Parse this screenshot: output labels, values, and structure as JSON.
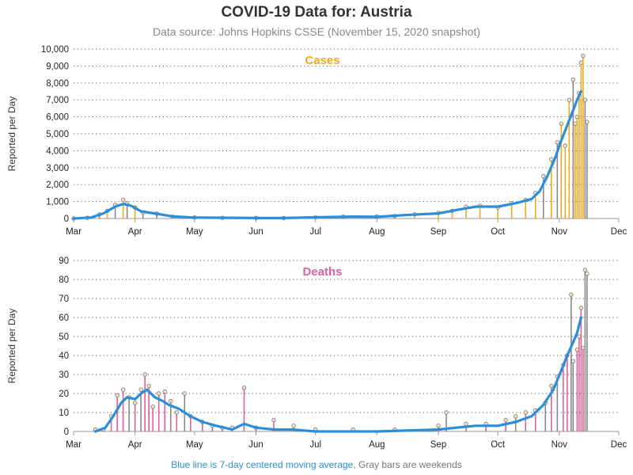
{
  "title": "COVID-19 Data for: Austria",
  "subtitle": "Data source: Johns Hopkins CSSE (November 15, 2020 snapshot)",
  "footer": {
    "blue_text": "Blue line is 7-day centered moving average,",
    "gray_text": "Gray bars are weekends"
  },
  "colors": {
    "cases": "#f0a91e",
    "deaths": "#e0609a",
    "average": "#2a8fd8",
    "weekend": "#888888"
  },
  "chart_data": [
    {
      "type": "bar",
      "panel_label": "Cases",
      "ylabel": "Reported per Day",
      "ylim": [
        0,
        10000
      ],
      "yticks": [
        "0",
        "1,000",
        "2,000",
        "3,000",
        "4,000",
        "5,000",
        "6,000",
        "7,000",
        "8,000",
        "9,000",
        "10,000"
      ],
      "xticks": [
        "Mar",
        "Apr",
        "May",
        "Jun",
        "Jul",
        "Aug",
        "Sep",
        "Oct",
        "Nov",
        "Dec"
      ],
      "grid": "horizontal dotted",
      "daily_series": [
        {
          "date": "2020-03-01",
          "value": 0
        },
        {
          "date": "2020-03-08",
          "value": 40
        },
        {
          "date": "2020-03-14",
          "value": 250
        },
        {
          "date": "2020-03-18",
          "value": 450
        },
        {
          "date": "2020-03-22",
          "value": 800
        },
        {
          "date": "2020-03-26",
          "value": 1100
        },
        {
          "date": "2020-03-28",
          "value": 900
        },
        {
          "date": "2020-04-01",
          "value": 650
        },
        {
          "date": "2020-04-05",
          "value": 350
        },
        {
          "date": "2020-04-12",
          "value": 280
        },
        {
          "date": "2020-04-20",
          "value": 100
        },
        {
          "date": "2020-05-01",
          "value": 60
        },
        {
          "date": "2020-05-15",
          "value": 40
        },
        {
          "date": "2020-06-01",
          "value": 30
        },
        {
          "date": "2020-06-15",
          "value": 25
        },
        {
          "date": "2020-07-01",
          "value": 60
        },
        {
          "date": "2020-07-15",
          "value": 110
        },
        {
          "date": "2020-08-01",
          "value": 120
        },
        {
          "date": "2020-08-10",
          "value": 150
        },
        {
          "date": "2020-08-20",
          "value": 250
        },
        {
          "date": "2020-09-01",
          "value": 330
        },
        {
          "date": "2020-09-08",
          "value": 450
        },
        {
          "date": "2020-09-15",
          "value": 700
        },
        {
          "date": "2020-09-22",
          "value": 750
        },
        {
          "date": "2020-10-01",
          "value": 650
        },
        {
          "date": "2020-10-08",
          "value": 900
        },
        {
          "date": "2020-10-15",
          "value": 1100
        },
        {
          "date": "2020-10-20",
          "value": 1500
        },
        {
          "date": "2020-10-24",
          "value": 2500
        },
        {
          "date": "2020-10-28",
          "value": 3500
        },
        {
          "date": "2020-10-31",
          "value": 4500
        },
        {
          "date": "2020-11-02",
          "value": 5600
        },
        {
          "date": "2020-11-04",
          "value": 4300
        },
        {
          "date": "2020-11-06",
          "value": 7000
        },
        {
          "date": "2020-11-08",
          "value": 8200
        },
        {
          "date": "2020-11-09",
          "value": 5600
        },
        {
          "date": "2020-11-10",
          "value": 6000
        },
        {
          "date": "2020-11-11",
          "value": 7400
        },
        {
          "date": "2020-11-12",
          "value": 9200
        },
        {
          "date": "2020-11-13",
          "value": 9600
        },
        {
          "date": "2020-11-14",
          "value": 7000
        },
        {
          "date": "2020-11-15",
          "value": 5700
        }
      ],
      "moving_average": [
        {
          "date": "2020-03-01",
          "value": 0
        },
        {
          "date": "2020-03-10",
          "value": 60
        },
        {
          "date": "2020-03-16",
          "value": 300
        },
        {
          "date": "2020-03-22",
          "value": 700
        },
        {
          "date": "2020-03-26",
          "value": 860
        },
        {
          "date": "2020-03-30",
          "value": 750
        },
        {
          "date": "2020-04-04",
          "value": 420
        },
        {
          "date": "2020-04-12",
          "value": 280
        },
        {
          "date": "2020-04-20",
          "value": 120
        },
        {
          "date": "2020-05-01",
          "value": 55
        },
        {
          "date": "2020-06-01",
          "value": 30
        },
        {
          "date": "2020-06-15",
          "value": 30
        },
        {
          "date": "2020-07-01",
          "value": 70
        },
        {
          "date": "2020-07-20",
          "value": 110
        },
        {
          "date": "2020-08-01",
          "value": 100
        },
        {
          "date": "2020-08-15",
          "value": 200
        },
        {
          "date": "2020-09-01",
          "value": 300
        },
        {
          "date": "2020-09-10",
          "value": 500
        },
        {
          "date": "2020-09-20",
          "value": 700
        },
        {
          "date": "2020-10-01",
          "value": 700
        },
        {
          "date": "2020-10-10",
          "value": 900
        },
        {
          "date": "2020-10-18",
          "value": 1150
        },
        {
          "date": "2020-10-22",
          "value": 1600
        },
        {
          "date": "2020-10-26",
          "value": 2500
        },
        {
          "date": "2020-10-30",
          "value": 3600
        },
        {
          "date": "2020-11-02",
          "value": 4600
        },
        {
          "date": "2020-11-05",
          "value": 5500
        },
        {
          "date": "2020-11-08",
          "value": 6400
        },
        {
          "date": "2020-11-10",
          "value": 7000
        },
        {
          "date": "2020-11-12",
          "value": 7500
        }
      ]
    },
    {
      "type": "bar",
      "panel_label": "Deaths",
      "ylabel": "Reported per Day",
      "ylim": [
        0,
        90
      ],
      "yticks": [
        "0",
        "10",
        "20",
        "30",
        "40",
        "50",
        "60",
        "70",
        "80",
        "90"
      ],
      "xticks": [
        "Mar",
        "Apr",
        "May",
        "Jun",
        "Jul",
        "Aug",
        "Sep",
        "Oct",
        "Nov",
        "Dec"
      ],
      "grid": "horizontal dotted",
      "daily_series": [
        {
          "date": "2020-03-12",
          "value": 1
        },
        {
          "date": "2020-03-16",
          "value": 1
        },
        {
          "date": "2020-03-20",
          "value": 8
        },
        {
          "date": "2020-03-23",
          "value": 19
        },
        {
          "date": "2020-03-26",
          "value": 22
        },
        {
          "date": "2020-03-29",
          "value": 18
        },
        {
          "date": "2020-04-01",
          "value": 15
        },
        {
          "date": "2020-04-04",
          "value": 22
        },
        {
          "date": "2020-04-06",
          "value": 30
        },
        {
          "date": "2020-04-08",
          "value": 24
        },
        {
          "date": "2020-04-10",
          "value": 13
        },
        {
          "date": "2020-04-13",
          "value": 20
        },
        {
          "date": "2020-04-16",
          "value": 21
        },
        {
          "date": "2020-04-19",
          "value": 16
        },
        {
          "date": "2020-04-22",
          "value": 10
        },
        {
          "date": "2020-04-26",
          "value": 20
        },
        {
          "date": "2020-04-29",
          "value": 8
        },
        {
          "date": "2020-05-05",
          "value": 5
        },
        {
          "date": "2020-05-10",
          "value": 3
        },
        {
          "date": "2020-05-15",
          "value": 2
        },
        {
          "date": "2020-05-20",
          "value": 2
        },
        {
          "date": "2020-05-26",
          "value": 23
        },
        {
          "date": "2020-06-01",
          "value": 2
        },
        {
          "date": "2020-06-10",
          "value": 6
        },
        {
          "date": "2020-06-20",
          "value": 3
        },
        {
          "date": "2020-07-01",
          "value": 1
        },
        {
          "date": "2020-07-20",
          "value": 1
        },
        {
          "date": "2020-08-10",
          "value": 1
        },
        {
          "date": "2020-09-01",
          "value": 3
        },
        {
          "date": "2020-09-05",
          "value": 10
        },
        {
          "date": "2020-09-15",
          "value": 4
        },
        {
          "date": "2020-09-25",
          "value": 4
        },
        {
          "date": "2020-10-05",
          "value": 6
        },
        {
          "date": "2020-10-10",
          "value": 8
        },
        {
          "date": "2020-10-15",
          "value": 10
        },
        {
          "date": "2020-10-20",
          "value": 11
        },
        {
          "date": "2020-10-25",
          "value": 15
        },
        {
          "date": "2020-10-28",
          "value": 24
        },
        {
          "date": "2020-10-31",
          "value": 29
        },
        {
          "date": "2020-11-03",
          "value": 35
        },
        {
          "date": "2020-11-05",
          "value": 40
        },
        {
          "date": "2020-11-07",
          "value": 72
        },
        {
          "date": "2020-11-08",
          "value": 37
        },
        {
          "date": "2020-11-10",
          "value": 43
        },
        {
          "date": "2020-11-11",
          "value": 50
        },
        {
          "date": "2020-11-12",
          "value": 65
        },
        {
          "date": "2020-11-13",
          "value": 44
        },
        {
          "date": "2020-11-14",
          "value": 85
        },
        {
          "date": "2020-11-15",
          "value": 83
        }
      ],
      "moving_average": [
        {
          "date": "2020-03-12",
          "value": 0
        },
        {
          "date": "2020-03-17",
          "value": 2
        },
        {
          "date": "2020-03-21",
          "value": 8
        },
        {
          "date": "2020-03-25",
          "value": 15
        },
        {
          "date": "2020-03-28",
          "value": 18
        },
        {
          "date": "2020-04-01",
          "value": 17
        },
        {
          "date": "2020-04-04",
          "value": 20
        },
        {
          "date": "2020-04-07",
          "value": 22
        },
        {
          "date": "2020-04-11",
          "value": 18
        },
        {
          "date": "2020-04-15",
          "value": 16
        },
        {
          "date": "2020-04-18",
          "value": 14
        },
        {
          "date": "2020-04-23",
          "value": 12
        },
        {
          "date": "2020-04-29",
          "value": 8
        },
        {
          "date": "2020-05-05",
          "value": 5
        },
        {
          "date": "2020-05-12",
          "value": 3
        },
        {
          "date": "2020-05-20",
          "value": 1
        },
        {
          "date": "2020-05-26",
          "value": 4
        },
        {
          "date": "2020-06-01",
          "value": 2
        },
        {
          "date": "2020-06-10",
          "value": 1
        },
        {
          "date": "2020-06-20",
          "value": 1
        },
        {
          "date": "2020-07-01",
          "value": 0
        },
        {
          "date": "2020-08-01",
          "value": 0
        },
        {
          "date": "2020-09-01",
          "value": 1
        },
        {
          "date": "2020-09-10",
          "value": 2
        },
        {
          "date": "2020-09-20",
          "value": 3
        },
        {
          "date": "2020-10-01",
          "value": 3
        },
        {
          "date": "2020-10-10",
          "value": 5
        },
        {
          "date": "2020-10-18",
          "value": 8
        },
        {
          "date": "2020-10-24",
          "value": 14
        },
        {
          "date": "2020-10-29",
          "value": 22
        },
        {
          "date": "2020-11-02",
          "value": 32
        },
        {
          "date": "2020-11-05",
          "value": 40
        },
        {
          "date": "2020-11-08",
          "value": 47
        },
        {
          "date": "2020-11-10",
          "value": 52
        },
        {
          "date": "2020-11-12",
          "value": 60
        }
      ]
    }
  ]
}
